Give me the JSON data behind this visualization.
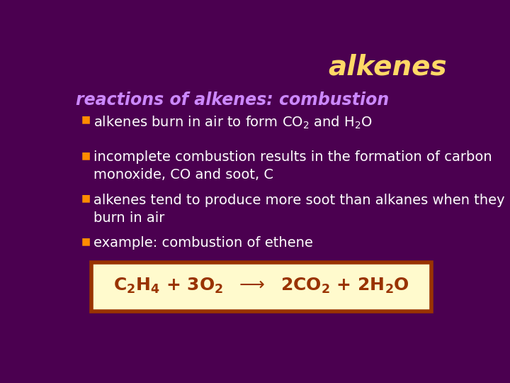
{
  "bg_color": "#4B0050",
  "title_text": "alkenes",
  "title_color": "#FFD966",
  "title_fontsize": 28,
  "subtitle_text": "reactions of alkenes: combustion",
  "subtitle_color": "#CC88FF",
  "subtitle_fontsize": 17,
  "bullet_color": "#FFFFFF",
  "bullet_fontsize": 14,
  "bullet_marker_color": "#FF8C00",
  "example_label": "example: combustion of ethene",
  "example_label_color": "#FFFFFF",
  "example_label_fontsize": 14,
  "box_bg": "#FFFACD",
  "box_border_color": "#993300",
  "equation_color": "#993300",
  "equation_fontsize": 18
}
